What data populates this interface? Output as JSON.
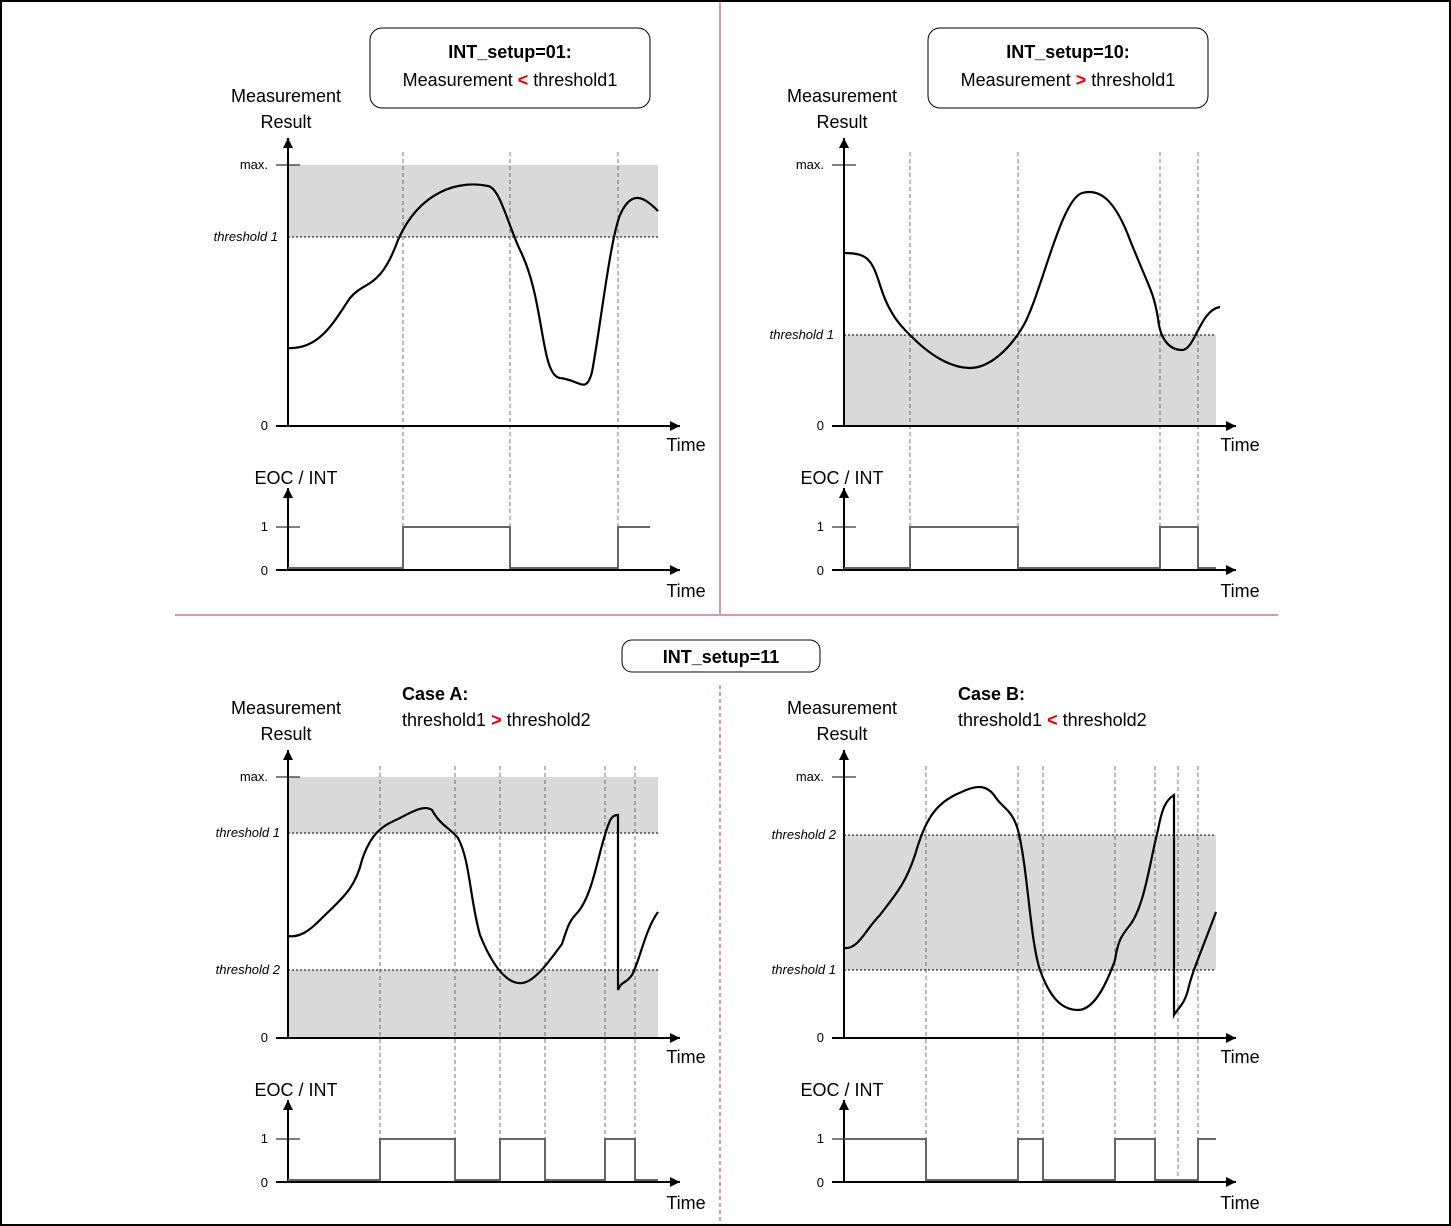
{
  "panels": {
    "p01": {
      "title_bold": "INT_setup=01:",
      "cond_left": "Measurement",
      "cond_op": "<",
      "cond_right": "threshold1"
    },
    "p10": {
      "title_bold": "INT_setup=10:",
      "cond_left": "Measurement",
      "cond_op": ">",
      "cond_right": "threshold1"
    },
    "p11": {
      "title_bold": "INT_setup=11",
      "caseA": {
        "title": "Case A:",
        "cond_left": "threshold1",
        "cond_op": ">",
        "cond_right": "threshold2"
      },
      "caseB": {
        "title": "Case B:",
        "cond_left": "threshold1",
        "cond_op": "<",
        "cond_right": "threshold2"
      }
    }
  },
  "axes": {
    "y_label_line1": "Measurement",
    "y_label_line2": "Result",
    "x_label": "Time",
    "tick_max": "max.",
    "tick_zero": "0",
    "tick_one": "1",
    "threshold1": "threshold 1",
    "threshold2": "threshold 2",
    "eoc_label": "EOC / INT"
  },
  "colors": {
    "shade": "#d9d9d9",
    "divider": "#b0306a",
    "operator": "#e00000",
    "signal": "#666666"
  }
}
